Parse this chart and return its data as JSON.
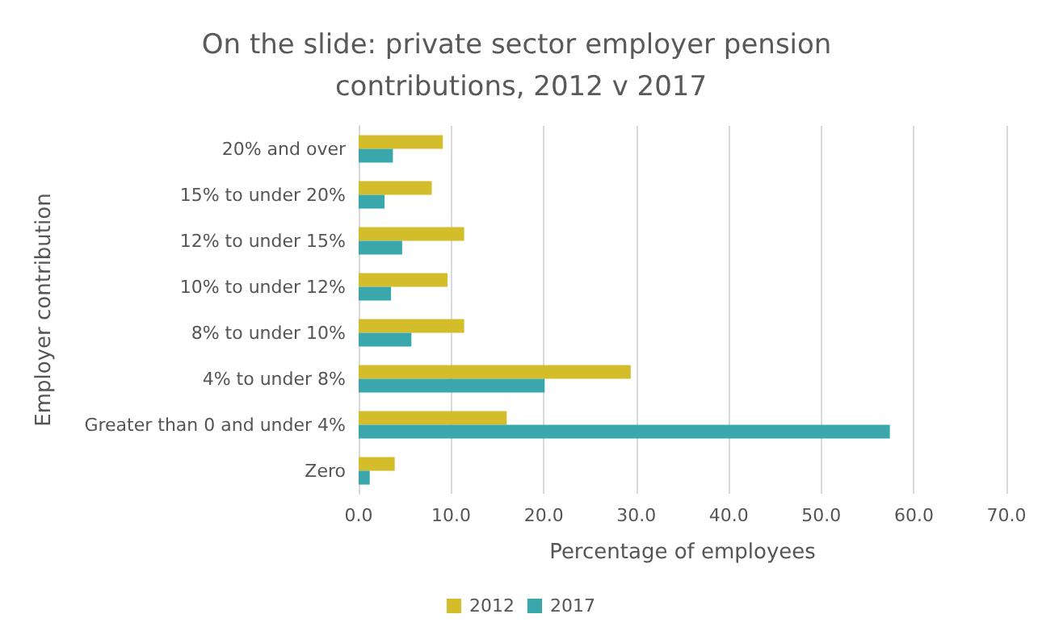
{
  "chart_data": {
    "type": "bar",
    "orientation": "horizontal",
    "title": "On the slide: private sector employer pension contributions, 2012 v 2017",
    "xlabel": "Percentage of employees",
    "ylabel": "Employer contribution",
    "categories": [
      "20% and over",
      "15% to under 20%",
      "12% to under 15%",
      "10% to under 12%",
      "8% to under 10%",
      "4% to under 8%",
      "Greater than 0 and under 4%",
      "Zero"
    ],
    "series": [
      {
        "name": "2012",
        "color": "#d4bd2b",
        "values": [
          9.1,
          7.9,
          11.4,
          9.6,
          11.4,
          29.4,
          16.0,
          3.9
        ]
      },
      {
        "name": "2017",
        "color": "#3aa7ad",
        "values": [
          3.7,
          2.8,
          4.7,
          3.5,
          5.7,
          20.1,
          57.4,
          1.2
        ]
      }
    ],
    "xlim": [
      0,
      70
    ],
    "xticks": [
      {
        "value": 0,
        "label": "0.0"
      },
      {
        "value": 10,
        "label": "10.0"
      },
      {
        "value": 20,
        "label": "20.0"
      },
      {
        "value": 30,
        "label": "30.0"
      },
      {
        "value": 40,
        "label": "40.0"
      },
      {
        "value": 50,
        "label": "50.0"
      },
      {
        "value": 60,
        "label": "60.0"
      },
      {
        "value": 70,
        "label": "70.0"
      }
    ],
    "grid": "x",
    "legend": "bottom"
  }
}
